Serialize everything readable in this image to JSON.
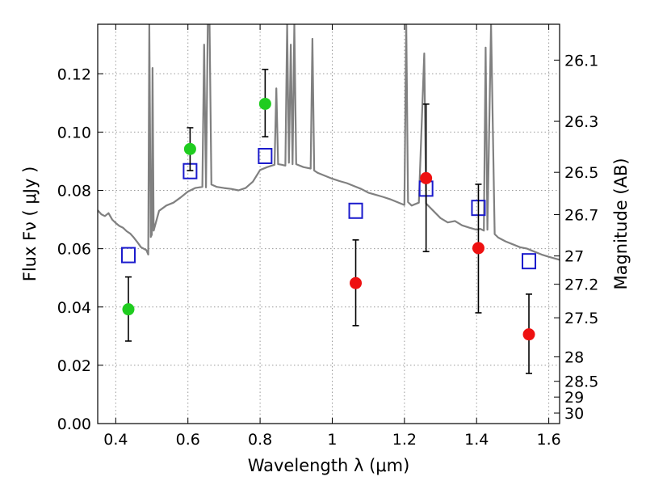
{
  "chart_data": {
    "type": "scatter",
    "title": "",
    "xlabel": "Wavelength  λ (μm)",
    "ylabel": "Flux  Fν  ( μJy )",
    "y2label": "Magnitude (AB)",
    "xlim": [
      0.35,
      1.63
    ],
    "ylim": [
      0.0,
      0.137
    ],
    "grid": true,
    "x_ticks": [
      0.4,
      0.6,
      0.8,
      1.0,
      1.2,
      1.4,
      1.6
    ],
    "x_tick_labels": [
      "0.4",
      "0.6",
      "0.8",
      "1",
      "1.2",
      "1.4",
      "1.6"
    ],
    "y_ticks": [
      0.0,
      0.02,
      0.04,
      0.06,
      0.08,
      0.1,
      0.12
    ],
    "y_tick_labels": [
      "0.00",
      "0.02",
      "0.04",
      "0.06",
      "0.08",
      "0.10",
      "0.12"
    ],
    "y2_ticks": [
      {
        "label": "26.1",
        "flux": 0.1247
      },
      {
        "label": "26.3",
        "flux": 0.1037
      },
      {
        "label": "26.5",
        "flux": 0.0862
      },
      {
        "label": "26.7",
        "flux": 0.0717
      },
      {
        "label": "27",
        "flux": 0.0575
      },
      {
        "label": "27.2",
        "flux": 0.0478
      },
      {
        "label": "27.5",
        "flux": 0.0363
      },
      {
        "label": "28",
        "flux": 0.0229
      },
      {
        "label": "28.5",
        "flux": 0.0145
      },
      {
        "label": "29",
        "flux": 0.0091
      },
      {
        "label": "30",
        "flux": 0.0036
      }
    ],
    "colors": {
      "model_line": "#808080",
      "green_points": "#1fcc1f",
      "red_points": "#ee1111",
      "squares": "#1a1acc",
      "error_bars": "#000000",
      "grid": "#9a9a9a"
    },
    "series": [
      {
        "marker": "circle",
        "color": "green",
        "points": [
          {
            "x": 0.435,
            "y": 0.0392,
            "ylo": 0.0283,
            "yhi": 0.0503
          },
          {
            "x": 0.606,
            "y": 0.0942,
            "ylo": 0.0868,
            "yhi": 0.1015
          },
          {
            "x": 0.814,
            "y": 0.1097,
            "ylo": 0.0984,
            "yhi": 0.1215
          }
        ]
      },
      {
        "marker": "circle",
        "color": "red",
        "points": [
          {
            "x": 1.065,
            "y": 0.0482,
            "ylo": 0.0336,
            "yhi": 0.063
          },
          {
            "x": 1.26,
            "y": 0.0842,
            "ylo": 0.059,
            "yhi": 0.1096
          },
          {
            "x": 1.405,
            "y": 0.0602,
            "ylo": 0.038,
            "yhi": 0.0821
          },
          {
            "x": 1.545,
            "y": 0.0306,
            "ylo": 0.0172,
            "yhi": 0.0444
          }
        ]
      },
      {
        "marker": "square",
        "color": "blue",
        "points": [
          {
            "x": 0.435,
            "y": 0.0578
          },
          {
            "x": 0.606,
            "y": 0.0866
          },
          {
            "x": 0.814,
            "y": 0.0918
          },
          {
            "x": 1.065,
            "y": 0.073
          },
          {
            "x": 1.26,
            "y": 0.0806
          },
          {
            "x": 1.405,
            "y": 0.074
          },
          {
            "x": 1.545,
            "y": 0.0557
          }
        ]
      },
      {
        "type": "line",
        "color": "gray",
        "points": [
          [
            0.35,
            0.0732
          ],
          [
            0.36,
            0.0718
          ],
          [
            0.37,
            0.0712
          ],
          [
            0.38,
            0.0722
          ],
          [
            0.39,
            0.07
          ],
          [
            0.4,
            0.0688
          ],
          [
            0.41,
            0.0678
          ],
          [
            0.42,
            0.0672
          ],
          [
            0.43,
            0.066
          ],
          [
            0.44,
            0.0652
          ],
          [
            0.45,
            0.0638
          ],
          [
            0.46,
            0.0622
          ],
          [
            0.47,
            0.0605
          ],
          [
            0.485,
            0.0595
          ],
          [
            0.49,
            0.058
          ],
          [
            0.493,
            0.137
          ],
          [
            0.497,
            0.064
          ],
          [
            0.5,
            0.0648
          ],
          [
            0.502,
            0.122
          ],
          [
            0.505,
            0.0662
          ],
          [
            0.52,
            0.073
          ],
          [
            0.54,
            0.0748
          ],
          [
            0.56,
            0.0758
          ],
          [
            0.58,
            0.0776
          ],
          [
            0.6,
            0.0796
          ],
          [
            0.62,
            0.0808
          ],
          [
            0.64,
            0.0812
          ],
          [
            0.645,
            0.13
          ],
          [
            0.65,
            0.081
          ],
          [
            0.655,
            0.137
          ],
          [
            0.66,
            0.137
          ],
          [
            0.665,
            0.082
          ],
          [
            0.68,
            0.0812
          ],
          [
            0.7,
            0.0808
          ],
          [
            0.72,
            0.0805
          ],
          [
            0.74,
            0.08
          ],
          [
            0.76,
            0.0808
          ],
          [
            0.78,
            0.083
          ],
          [
            0.8,
            0.087
          ],
          [
            0.82,
            0.088
          ],
          [
            0.84,
            0.0888
          ],
          [
            0.845,
            0.115
          ],
          [
            0.85,
            0.089
          ],
          [
            0.86,
            0.0888
          ],
          [
            0.87,
            0.0885
          ],
          [
            0.875,
            0.137
          ],
          [
            0.88,
            0.0895
          ],
          [
            0.885,
            0.13
          ],
          [
            0.89,
            0.089
          ],
          [
            0.895,
            0.137
          ],
          [
            0.9,
            0.089
          ],
          [
            0.92,
            0.088
          ],
          [
            0.94,
            0.0875
          ],
          [
            0.945,
            0.132
          ],
          [
            0.95,
            0.0868
          ],
          [
            0.96,
            0.086
          ],
          [
            0.98,
            0.085
          ],
          [
            1.0,
            0.084
          ],
          [
            1.02,
            0.0832
          ],
          [
            1.04,
            0.0825
          ],
          [
            1.06,
            0.0815
          ],
          [
            1.08,
            0.0805
          ],
          [
            1.1,
            0.0792
          ],
          [
            1.12,
            0.0785
          ],
          [
            1.14,
            0.0778
          ],
          [
            1.16,
            0.077
          ],
          [
            1.18,
            0.076
          ],
          [
            1.2,
            0.075
          ],
          [
            1.205,
            0.137
          ],
          [
            1.21,
            0.076
          ],
          [
            1.22,
            0.0748
          ],
          [
            1.24,
            0.0758
          ],
          [
            1.255,
            0.127
          ],
          [
            1.26,
            0.0755
          ],
          [
            1.28,
            0.073
          ],
          [
            1.3,
            0.0705
          ],
          [
            1.32,
            0.069
          ],
          [
            1.34,
            0.0695
          ],
          [
            1.36,
            0.068
          ],
          [
            1.38,
            0.0672
          ],
          [
            1.4,
            0.0665
          ],
          [
            1.41,
            0.0668
          ],
          [
            1.42,
            0.0662
          ],
          [
            1.425,
            0.129
          ],
          [
            1.43,
            0.0665
          ],
          [
            1.44,
            0.137
          ],
          [
            1.45,
            0.065
          ],
          [
            1.46,
            0.0638
          ],
          [
            1.48,
            0.0625
          ],
          [
            1.5,
            0.0615
          ],
          [
            1.52,
            0.0605
          ],
          [
            1.54,
            0.06
          ],
          [
            1.56,
            0.059
          ],
          [
            1.58,
            0.058
          ],
          [
            1.6,
            0.0572
          ],
          [
            1.63,
            0.0562
          ]
        ]
      }
    ]
  }
}
